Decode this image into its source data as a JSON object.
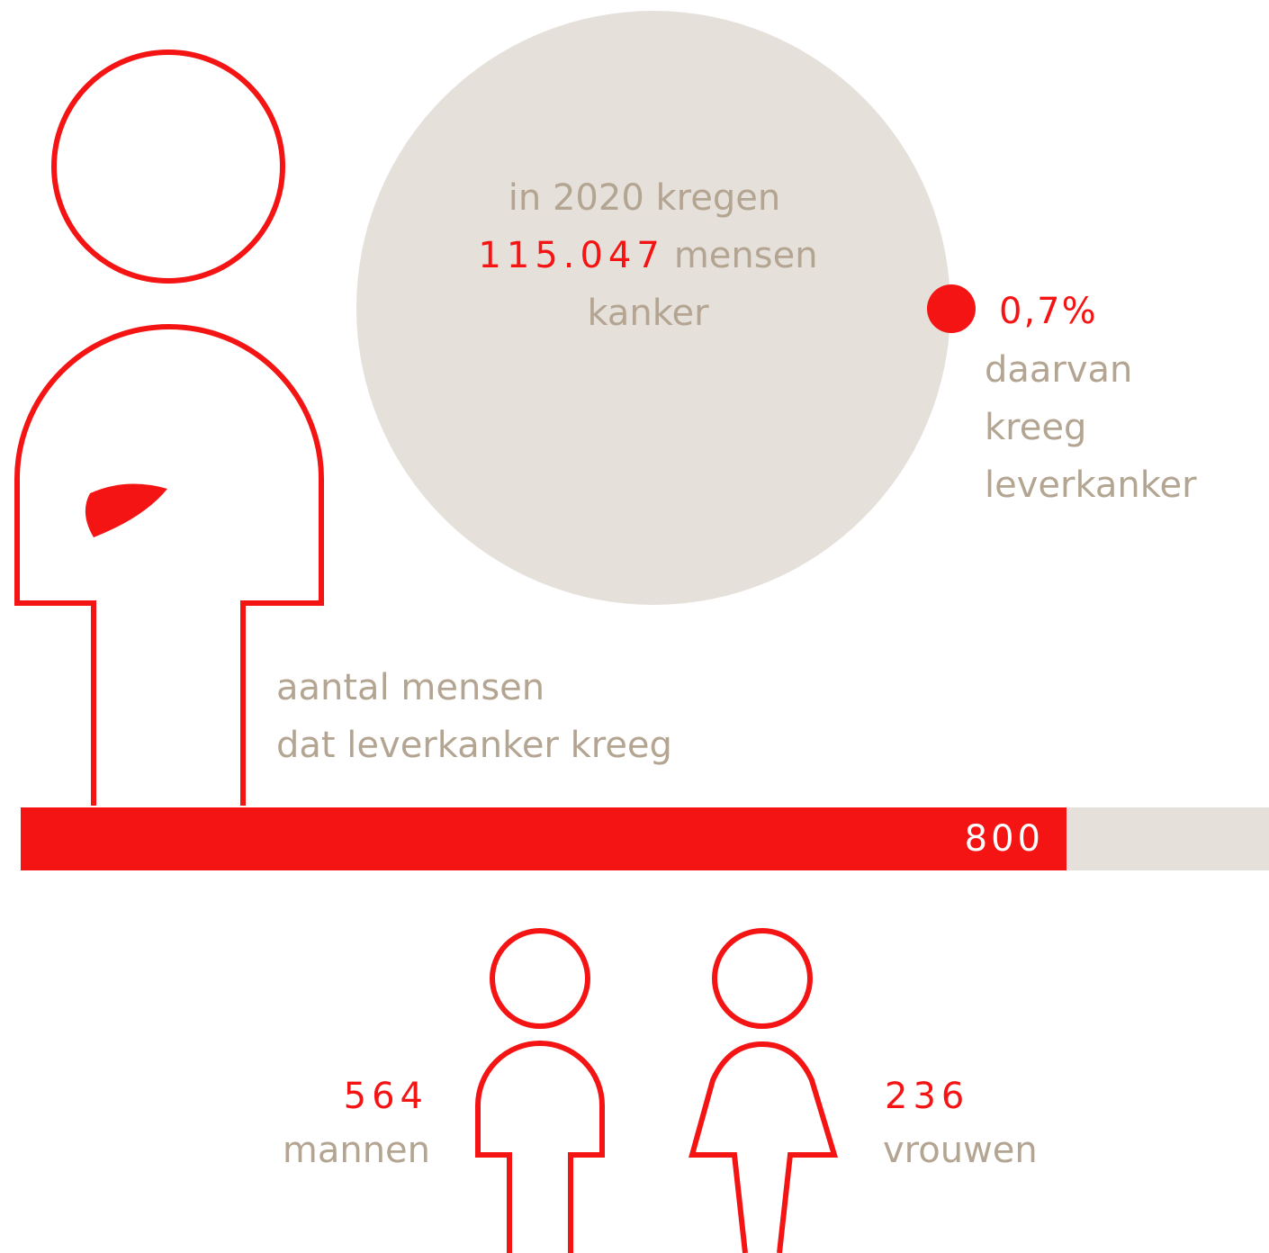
{
  "circle": {
    "line1": "in 2020 kregen",
    "number": "115.047",
    "line2": "mensen",
    "line3": "kanker"
  },
  "share": {
    "value": "0,7%",
    "lines": [
      "daarvan",
      "kreeg",
      "leverkanker"
    ]
  },
  "bar": {
    "label_lines": [
      "aantal mensen",
      "dat leverkanker kreeg"
    ],
    "value": "800"
  },
  "men": {
    "value": "564",
    "label": "mannen"
  },
  "women": {
    "value": "236",
    "label": "vrouwen"
  }
}
